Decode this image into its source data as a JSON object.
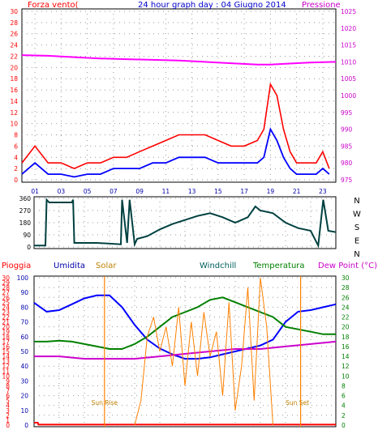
{
  "chart_data": [
    {
      "type": "line",
      "title": "24 hour graph day : 04 Giugno 2014",
      "left_label": "Forza vento(",
      "right_label": "Pressione",
      "left_ticks": [
        "0",
        "2",
        "4",
        "6",
        "8",
        "10",
        "12",
        "14",
        "16",
        "18",
        "20",
        "22",
        "24",
        "26",
        "28",
        "30"
      ],
      "right_ticks": [
        "975",
        "980",
        "985",
        "990",
        "995",
        "1000",
        "1005",
        "1010",
        "1015",
        "1020",
        "1025"
      ],
      "x_ticks": [
        "01",
        "03",
        "05",
        "07",
        "09",
        "11",
        "13",
        "15",
        "17",
        "19",
        "21",
        "23"
      ],
      "ylim_left": [
        0,
        30
      ],
      "ylim_right": [
        975,
        1025
      ],
      "series": [
        {
          "role": "wind-gust",
          "color": "#ff0000",
          "x": [
            0,
            1,
            2,
            3,
            4,
            5,
            6,
            7,
            8,
            9,
            10,
            11,
            12,
            13,
            14,
            15,
            16,
            17,
            18,
            18.5,
            19,
            19.5,
            20,
            20.5,
            21,
            22,
            22.5,
            23,
            23.5
          ],
          "values": [
            3,
            6,
            3,
            3,
            2,
            3,
            3,
            4,
            4,
            5,
            6,
            7,
            8,
            8,
            8,
            7,
            6,
            6,
            7,
            9,
            17,
            15,
            9,
            5,
            3,
            3,
            3,
            5,
            2
          ]
        },
        {
          "role": "wind-mean",
          "color": "#0000ff",
          "x": [
            0,
            1,
            2,
            3,
            4,
            5,
            6,
            7,
            8,
            9,
            10,
            11,
            12,
            13,
            14,
            15,
            16,
            17,
            18,
            18.5,
            19,
            19.5,
            20,
            20.5,
            21,
            22,
            22.5,
            23,
            23.5
          ],
          "values": [
            1,
            3,
            1,
            1,
            0.5,
            1,
            1,
            2,
            2,
            2,
            3,
            3,
            4,
            4,
            4,
            3,
            3,
            3,
            3,
            4,
            9,
            7,
            4,
            2,
            1,
            1,
            1,
            2,
            1
          ]
        },
        {
          "role": "pressure",
          "color": "#ff00ff",
          "x": [
            0,
            2,
            4,
            6,
            8,
            10,
            12,
            14,
            16,
            18,
            19,
            20,
            22,
            24
          ],
          "values": [
            1012,
            1011.8,
            1011.4,
            1011,
            1010.8,
            1010.6,
            1010.4,
            1010,
            1009.6,
            1009.2,
            1009.2,
            1009.4,
            1009.8,
            1010
          ]
        }
      ]
    },
    {
      "type": "line",
      "title": "",
      "right_label": "NWSEN",
      "left_ticks": [
        "0",
        "90",
        "180",
        "270",
        "360"
      ],
      "ylim": [
        0,
        360
      ],
      "series": [
        {
          "role": "wind-direction",
          "color": "#004040",
          "x": [
            0,
            0.9,
            1,
            1.2,
            3,
            3.1,
            3.2,
            5,
            6.9,
            7,
            7.4,
            7.6,
            8,
            8.2,
            9,
            10,
            11,
            12,
            13,
            14,
            15,
            16,
            17,
            17.6,
            18,
            19,
            20,
            21,
            22,
            22.6,
            23,
            23.4,
            24
          ],
          "values": [
            10,
            10,
            350,
            330,
            330,
            350,
            30,
            30,
            20,
            350,
            30,
            350,
            20,
            60,
            80,
            130,
            170,
            200,
            230,
            250,
            220,
            180,
            220,
            300,
            270,
            250,
            180,
            140,
            120,
            10,
            350,
            120,
            110
          ]
        }
      ]
    },
    {
      "type": "line",
      "title": "",
      "labels": [
        "Pioggia",
        "Umidita",
        "Solar",
        "Windchill",
        "Temperatura",
        "Dew Point (°C)"
      ],
      "label_colors": [
        "#ff0000",
        "#0000aa",
        "#c08000",
        "#006060",
        "#008000",
        "#cc00cc"
      ],
      "left_ticks_outer": [
        "0",
        "1",
        "2",
        "3",
        "4",
        "5",
        "6",
        "7",
        "8",
        "9",
        "10",
        "11",
        "12",
        "13",
        "14",
        "15",
        "16",
        "17",
        "18",
        "19",
        "20",
        "21",
        "22",
        "23",
        "24",
        "25",
        "26",
        "27",
        "28",
        "29",
        "30"
      ],
      "left_ticks_inner": [
        "0",
        "10",
        "20",
        "30",
        "40",
        "50",
        "60",
        "70",
        "80",
        "90",
        "100"
      ],
      "right_ticks": [
        "0",
        "2",
        "4",
        "6",
        "8",
        "10",
        "12",
        "14",
        "16",
        "18",
        "20",
        "22",
        "24",
        "26",
        "28",
        "30"
      ],
      "annotations": [
        "Sun Rise",
        "Sun Set"
      ],
      "series": [
        {
          "role": "rain",
          "color": "#ff0000",
          "x": [
            0,
            0.3,
            0.35,
            24
          ],
          "values": [
            0.5,
            0.5,
            0.1,
            0.1
          ]
        },
        {
          "role": "humidity",
          "color": "#0000ff",
          "x": [
            0,
            1,
            2,
            3,
            4,
            5,
            6,
            7,
            8,
            9,
            10,
            11,
            12,
            13,
            14,
            15,
            16,
            17,
            18,
            19,
            20,
            21,
            22,
            23,
            24
          ],
          "values": [
            83,
            77,
            78,
            82,
            86,
            88,
            88,
            80,
            68,
            58,
            52,
            48,
            45,
            45,
            46,
            48,
            50,
            52,
            54,
            58,
            70,
            77,
            78,
            80,
            82
          ]
        },
        {
          "role": "temperature",
          "color": "#008000",
          "x": [
            0,
            1,
            2,
            3,
            4,
            5,
            6,
            7,
            8,
            9,
            10,
            11,
            12,
            13,
            14,
            15,
            16,
            17,
            18,
            19,
            20,
            21,
            22,
            23,
            24
          ],
          "values": [
            17,
            17,
            17.2,
            17,
            16.5,
            16,
            15.5,
            15.5,
            16.5,
            18,
            20,
            22,
            23,
            24,
            25.5,
            26,
            25,
            24,
            23,
            22,
            20,
            19.5,
            19,
            18.5,
            18.5
          ]
        },
        {
          "role": "dew-point",
          "color": "#cc00cc",
          "x": [
            0,
            2,
            4,
            6,
            8,
            10,
            12,
            14,
            16,
            18,
            20,
            22,
            24
          ],
          "values": [
            14,
            14,
            13.5,
            13.5,
            13.5,
            14,
            14.5,
            15,
            15.5,
            15.5,
            16,
            16.5,
            17
          ]
        },
        {
          "role": "solar",
          "color": "#ff8000",
          "x": [
            8,
            8.5,
            9,
            9.5,
            10,
            10.5,
            11,
            11.5,
            12,
            12.5,
            13,
            13.5,
            14,
            14.5,
            15,
            15.5,
            16,
            16.5,
            17,
            17.5,
            18,
            18.5,
            19
          ],
          "values": [
            0,
            5,
            18,
            22,
            15,
            20,
            12,
            24,
            8,
            21,
            10,
            23,
            14,
            19,
            6,
            25,
            3,
            12,
            28,
            5,
            30,
            20,
            0
          ]
        }
      ]
    }
  ]
}
